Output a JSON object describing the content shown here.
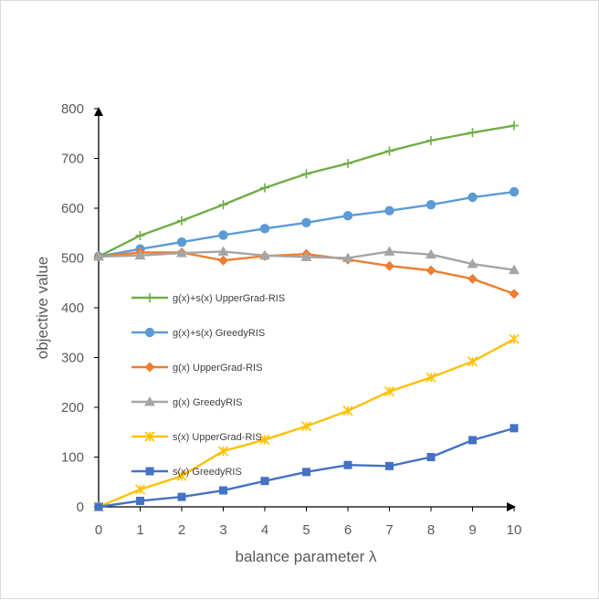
{
  "chart_data": {
    "type": "line",
    "title": "",
    "xlabel": "balance parameter λ",
    "ylabel": "objective value",
    "x": [
      0,
      1,
      2,
      3,
      4,
      5,
      6,
      7,
      8,
      9,
      10
    ],
    "xlim": [
      0,
      10
    ],
    "ylim": [
      0,
      800
    ],
    "yticks": [
      0,
      100,
      200,
      300,
      400,
      500,
      600,
      700,
      800
    ],
    "xticks": [
      0,
      1,
      2,
      3,
      4,
      5,
      6,
      7,
      8,
      9,
      10
    ],
    "grid": false,
    "legend_position": "left-center",
    "series": [
      {
        "name": "g(x)+s(x) UpperGrad-RIS",
        "color": "#70ad47",
        "marker": "plus",
        "values": [
          503,
          545,
          575,
          607,
          641,
          669,
          690,
          715,
          736,
          752,
          766
        ]
      },
      {
        "name": "g(x)+s(x) GreedyRIS",
        "color": "#5b9bd5",
        "marker": "circle",
        "values": [
          503,
          518,
          532,
          546,
          559,
          571,
          585,
          595,
          607,
          622,
          633
        ]
      },
      {
        "name": "g(x) UpperGrad-RIS",
        "color": "#ed7d31",
        "marker": "diamond",
        "values": [
          503,
          511,
          511,
          495,
          504,
          508,
          497,
          484,
          475,
          458,
          428
        ]
      },
      {
        "name": "g(x) GreedyRIS",
        "color": "#a5a5a5",
        "marker": "triangle",
        "values": [
          503,
          505,
          510,
          513,
          505,
          502,
          500,
          513,
          507,
          488,
          476
        ]
      },
      {
        "name": "s(x) UpperGrad-RIS",
        "color": "#ffc000",
        "marker": "asterisk",
        "values": [
          0,
          35,
          62,
          112,
          135,
          162,
          193,
          232,
          260,
          292,
          337
        ]
      },
      {
        "name": "s(x) GreedyRIS",
        "color": "#4472c4",
        "marker": "square",
        "values": [
          0,
          12,
          20,
          33,
          52,
          70,
          84,
          82,
          100,
          134,
          158
        ]
      }
    ]
  }
}
